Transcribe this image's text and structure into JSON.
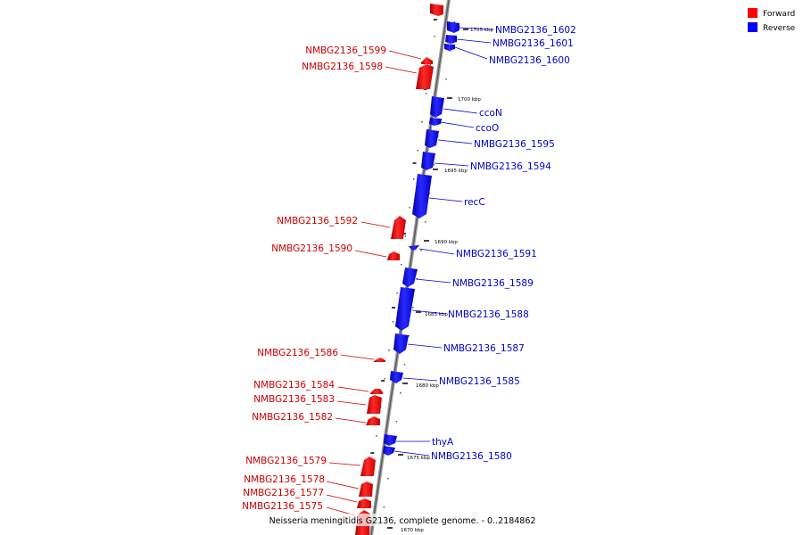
{
  "caption": "Neisseria meningitidis G2136, complete genome. - 0..2184862",
  "legend": {
    "forward": {
      "label": "Forward",
      "color": "#ff0000"
    },
    "reverse": {
      "label": "Reverse",
      "color": "#0000ff"
    }
  },
  "ticks": [
    {
      "label": "1705 kbp",
      "pos": 1705
    },
    {
      "label": "1700 kbp",
      "pos": 1700
    },
    {
      "label": "1695 kbp",
      "pos": 1695
    },
    {
      "label": "1690 kbp",
      "pos": 1690
    },
    {
      "label": "1685 kbp",
      "pos": 1685
    },
    {
      "label": "1680 kbp",
      "pos": 1680
    },
    {
      "label": "1675 kbp",
      "pos": 1675
    },
    {
      "label": "1670 kbp",
      "pos": 1670
    }
  ],
  "genes": [
    {
      "name": "NMBG2136_1602",
      "strand": "reverse"
    },
    {
      "name": "NMBG2136_1601",
      "strand": "reverse"
    },
    {
      "name": "NMBG2136_1600",
      "strand": "reverse"
    },
    {
      "name": "NMBG2136_1599",
      "strand": "forward"
    },
    {
      "name": "NMBG2136_1598",
      "strand": "forward"
    },
    {
      "name": "ccoN",
      "strand": "reverse"
    },
    {
      "name": "ccoO",
      "strand": "reverse"
    },
    {
      "name": "NMBG2136_1595",
      "strand": "reverse"
    },
    {
      "name": "NMBG2136_1594",
      "strand": "reverse"
    },
    {
      "name": "recC",
      "strand": "reverse"
    },
    {
      "name": "NMBG2136_1592",
      "strand": "forward"
    },
    {
      "name": "NMBG2136_1590",
      "strand": "forward"
    },
    {
      "name": "NMBG2136_1591",
      "strand": "reverse"
    },
    {
      "name": "NMBG2136_1589",
      "strand": "reverse"
    },
    {
      "name": "NMBG2136_1588",
      "strand": "reverse"
    },
    {
      "name": "NMBG2136_1587",
      "strand": "reverse"
    },
    {
      "name": "NMBG2136_1586",
      "strand": "forward"
    },
    {
      "name": "NMBG2136_1585",
      "strand": "reverse"
    },
    {
      "name": "NMBG2136_1584",
      "strand": "forward"
    },
    {
      "name": "NMBG2136_1583",
      "strand": "forward"
    },
    {
      "name": "NMBG2136_1582",
      "strand": "forward"
    },
    {
      "name": "thyA",
      "strand": "reverse"
    },
    {
      "name": "NMBG2136_1580",
      "strand": "reverse"
    },
    {
      "name": "NMBG2136_1579",
      "strand": "forward"
    },
    {
      "name": "NMBG2136_1578",
      "strand": "forward"
    },
    {
      "name": "NMBG2136_1577",
      "strand": "forward"
    },
    {
      "name": "NMBG2136_1575",
      "strand": "forward"
    }
  ]
}
